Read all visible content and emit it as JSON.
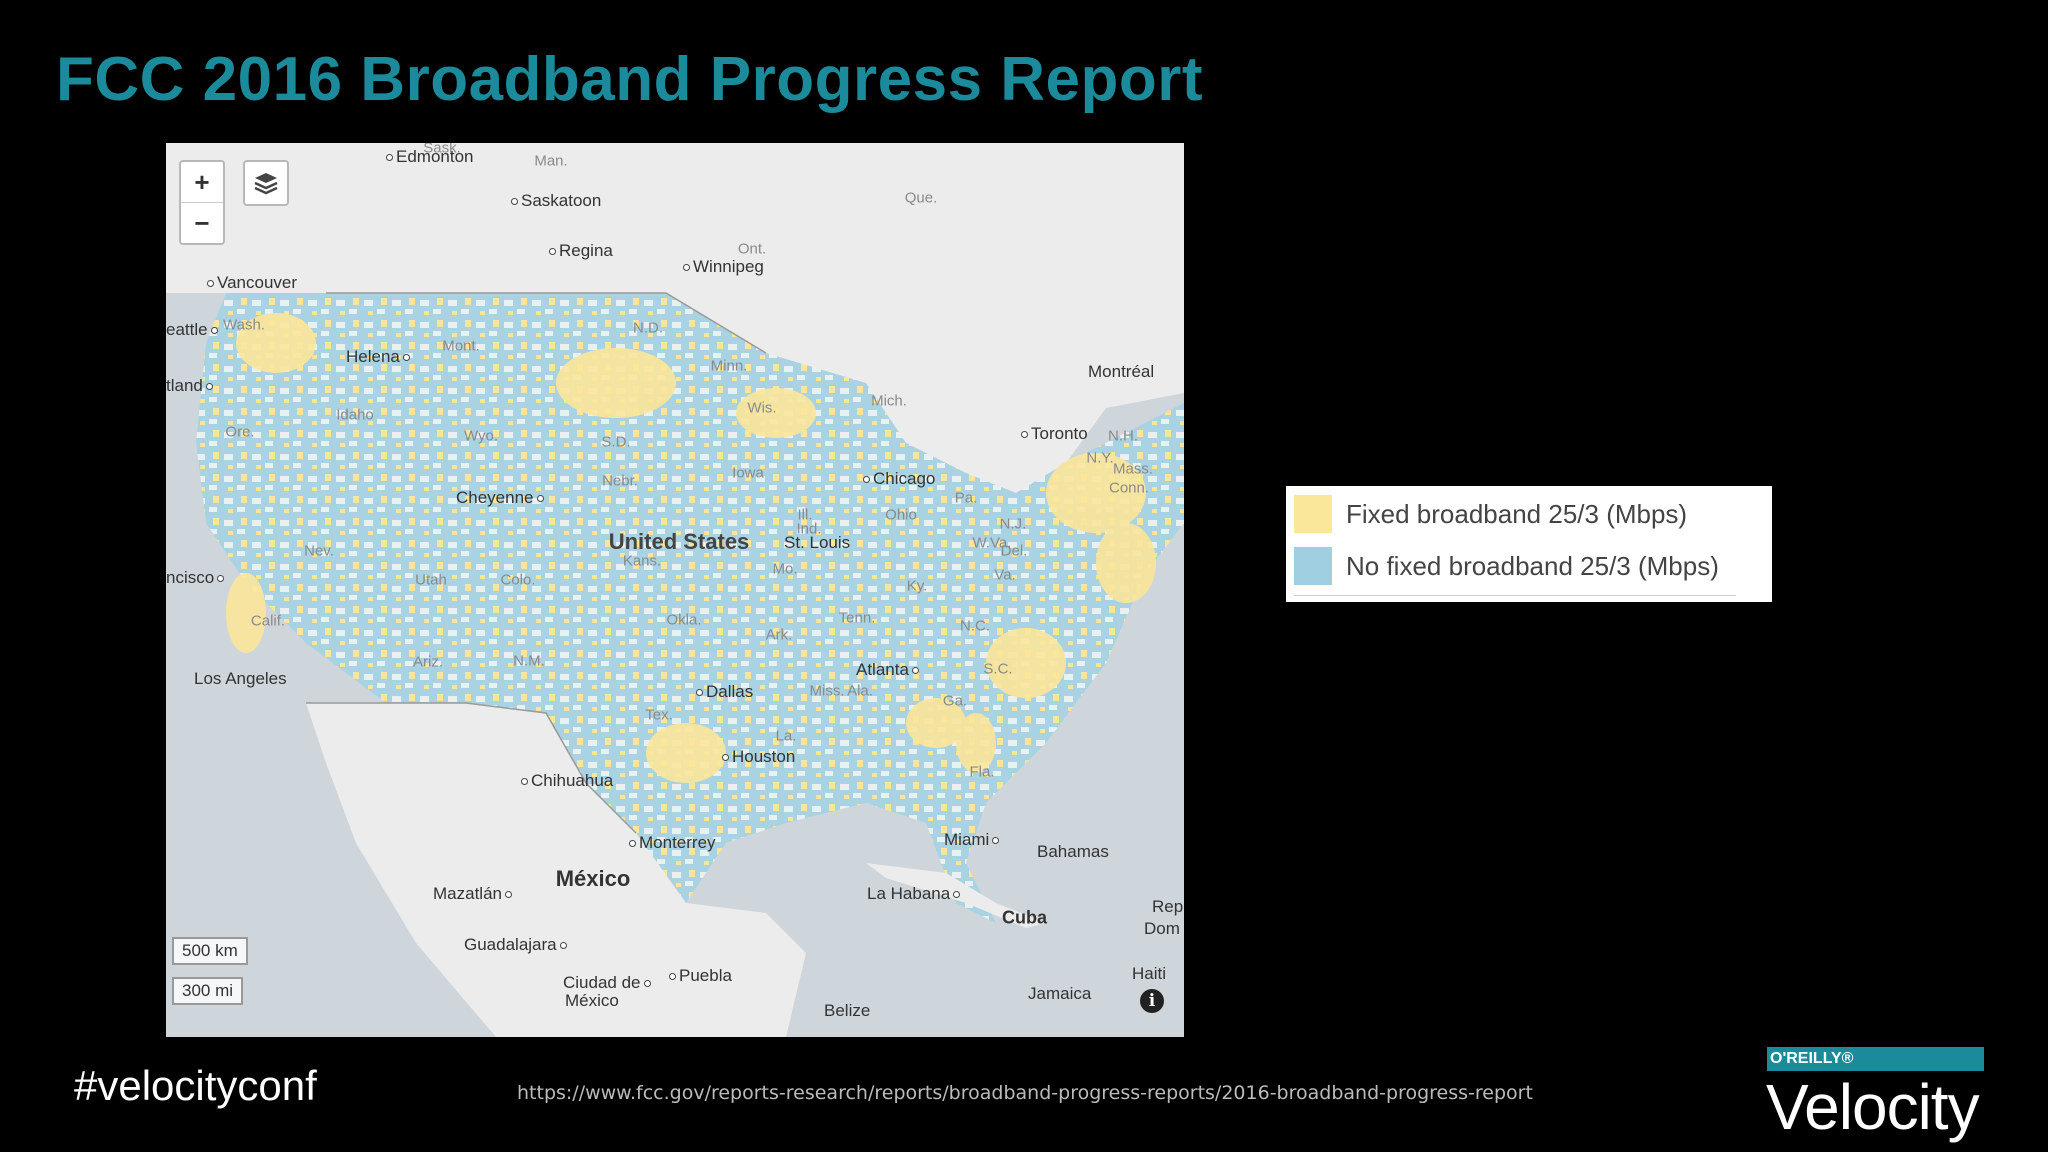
{
  "slide": {
    "title": "FCC 2016 Broadband Progress Report",
    "hashtag": "#velocityconf",
    "source_url": "https://www.fcc.gov/reports-research/reports/broadband-progress-reports/2016-broadband-progress-report",
    "brand_publisher": "O'REILLY®",
    "brand_name": "Velocity",
    "title_color": "#1b8a9a"
  },
  "map": {
    "zoom_in_label": "+",
    "zoom_out_label": "−",
    "scale_km": "500 km",
    "scale_mi": "300 mi",
    "info_label": "i",
    "countries": {
      "us": "United States",
      "mexico": "México",
      "cuba": "Cuba"
    },
    "cities": [
      {
        "name": "Edmonton",
        "key": "edmonton"
      },
      {
        "name": "Saskatoon",
        "key": "saskatoon"
      },
      {
        "name": "Regina",
        "key": "regina"
      },
      {
        "name": "Winnipeg",
        "key": "winnipeg"
      },
      {
        "name": "Vancouver",
        "key": "vancouver"
      },
      {
        "name": "eattle",
        "key": "seattle"
      },
      {
        "name": "tland",
        "key": "portland"
      },
      {
        "name": "Helena",
        "key": "helena"
      },
      {
        "name": "Montréal",
        "key": "montreal"
      },
      {
        "name": "Toronto",
        "key": "toronto"
      },
      {
        "name": "Chicago",
        "key": "chicago"
      },
      {
        "name": "Cheyenne",
        "key": "cheyenne"
      },
      {
        "name": "St. Louis",
        "key": "stlouis"
      },
      {
        "name": "ncisco",
        "key": "sanfrancisco"
      },
      {
        "name": "Los Angeles",
        "key": "losangeles"
      },
      {
        "name": "Atlanta",
        "key": "atlanta"
      },
      {
        "name": "Dallas",
        "key": "dallas"
      },
      {
        "name": "Houston",
        "key": "houston"
      },
      {
        "name": "Chihuahua",
        "key": "chihuahua"
      },
      {
        "name": "Monterrey",
        "key": "monterrey"
      },
      {
        "name": "Miami",
        "key": "miami"
      },
      {
        "name": "Bahamas",
        "key": "bahamas"
      },
      {
        "name": "Mazatlán",
        "key": "mazatlan"
      },
      {
        "name": "La Habana",
        "key": "lahabana"
      },
      {
        "name": "Guadalajara",
        "key": "guadalajara"
      },
      {
        "name": "Ciudad de",
        "key": "ciudad1"
      },
      {
        "name": "México",
        "key": "ciudad2"
      },
      {
        "name": "Puebla",
        "key": "puebla"
      },
      {
        "name": "Belize",
        "key": "belize"
      },
      {
        "name": "Jamaica",
        "key": "jamaica"
      },
      {
        "name": "Haiti",
        "key": "haiti"
      },
      {
        "name": "Rep",
        "key": "rep"
      },
      {
        "name": "Dom",
        "key": "dom"
      }
    ],
    "regions": [
      "Sask.",
      "Man.",
      "Ont.",
      "Que.",
      "Wash.",
      "Mont.",
      "N.D.",
      "Minn.",
      "Ore.",
      "Idaho",
      "Wyo.",
      "S.D.",
      "Wis.",
      "Mich.",
      "N.H.",
      "N.Y.",
      "Mass.",
      "Conn.",
      "Nebr.",
      "Iowa",
      "Ill.",
      "Ind.",
      "Ohio",
      "Pa.",
      "N.J.",
      "Del.",
      "Nev.",
      "Utah",
      "Colo.",
      "Kans.",
      "Mo.",
      "W.Va.",
      "Va.",
      "Ky.",
      "Calif.",
      "Okla.",
      "Ark.",
      "Tenn.",
      "N.C.",
      "Ariz.",
      "N.M.",
      "S.C.",
      "Miss.",
      "Ala.",
      "Ga.",
      "Tex.",
      "La.",
      "Fla."
    ]
  },
  "legend": {
    "items": [
      {
        "label": "Fixed broadband 25/3 (Mbps)",
        "color": "#fbe79a"
      },
      {
        "label": "No fixed broadband 25/3 (Mbps)",
        "color": "#9fcfe0"
      }
    ]
  }
}
